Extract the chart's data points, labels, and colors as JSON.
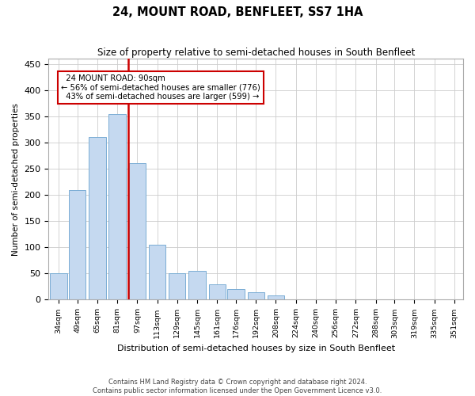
{
  "title": "24, MOUNT ROAD, BENFLEET, SS7 1HA",
  "subtitle": "Size of property relative to semi-detached houses in South Benfleet",
  "xlabel": "Distribution of semi-detached houses by size in South Benfleet",
  "ylabel": "Number of semi-detached properties",
  "property_size": 90,
  "property_label": "24 MOUNT ROAD: 90sqm",
  "pct_smaller": 56,
  "count_smaller": 776,
  "pct_larger": 43,
  "count_larger": 599,
  "bar_color": "#c5d9f0",
  "bar_edgecolor": "#7aadd4",
  "redline_color": "#cc0000",
  "annotation_box_edgecolor": "#cc0000",
  "bin_centers": [
    34,
    49,
    65,
    81,
    97,
    113,
    129,
    145,
    161,
    176,
    192,
    208,
    224,
    240,
    256,
    272,
    288,
    303,
    319,
    335,
    351
  ],
  "counts": [
    50,
    210,
    310,
    355,
    260,
    105,
    50,
    55,
    30,
    20,
    15,
    8,
    1,
    0,
    0,
    0,
    0,
    0,
    0,
    0,
    1
  ],
  "ylim": [
    0,
    460
  ],
  "yticks": [
    0,
    50,
    100,
    150,
    200,
    250,
    300,
    350,
    400,
    450
  ],
  "footer_line1": "Contains HM Land Registry data © Crown copyright and database right 2024.",
  "footer_line2": "Contains public sector information licensed under the Open Government Licence v3.0.",
  "background_color": "#ffffff",
  "grid_color": "#cccccc"
}
